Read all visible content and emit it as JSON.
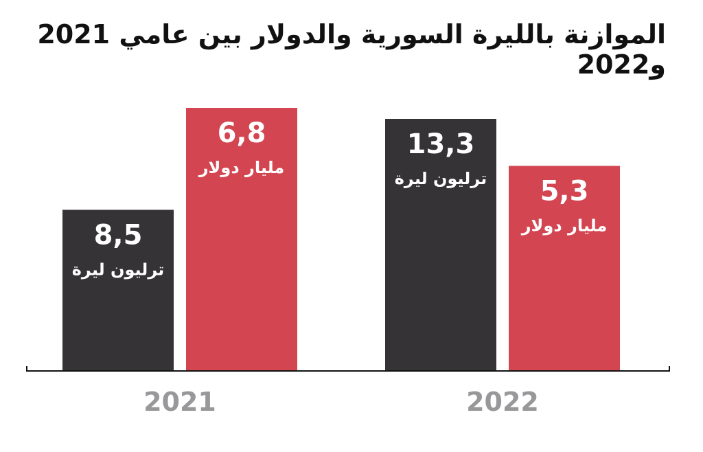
{
  "title": "الموازنة بالليرة السورية والدولار بين عامي 2021 و2022",
  "colors": {
    "lira_bar": "#363336",
    "dollar_bar": "#d34651",
    "bar_text": "#ffffff",
    "year_label": "#98989a",
    "axis": "#111111",
    "title": "#111111"
  },
  "chart_data": {
    "type": "bar",
    "title": "الموازنة بالليرة السورية والدولار بين عامي 2021 و2022",
    "categories": [
      "2021",
      "2022"
    ],
    "xlabel": "",
    "ylabel": "",
    "grid": false,
    "legend": "none",
    "series": [
      {
        "unit": "ترليون ليرة",
        "color": "#363336",
        "values": [
          8.5,
          13.3
        ],
        "value_labels": [
          "8,5",
          "13,3"
        ]
      },
      {
        "unit": "مليار دولار",
        "color": "#d34651",
        "values": [
          6.8,
          5.3
        ],
        "value_labels": [
          "6,8",
          "5,3"
        ]
      }
    ]
  }
}
